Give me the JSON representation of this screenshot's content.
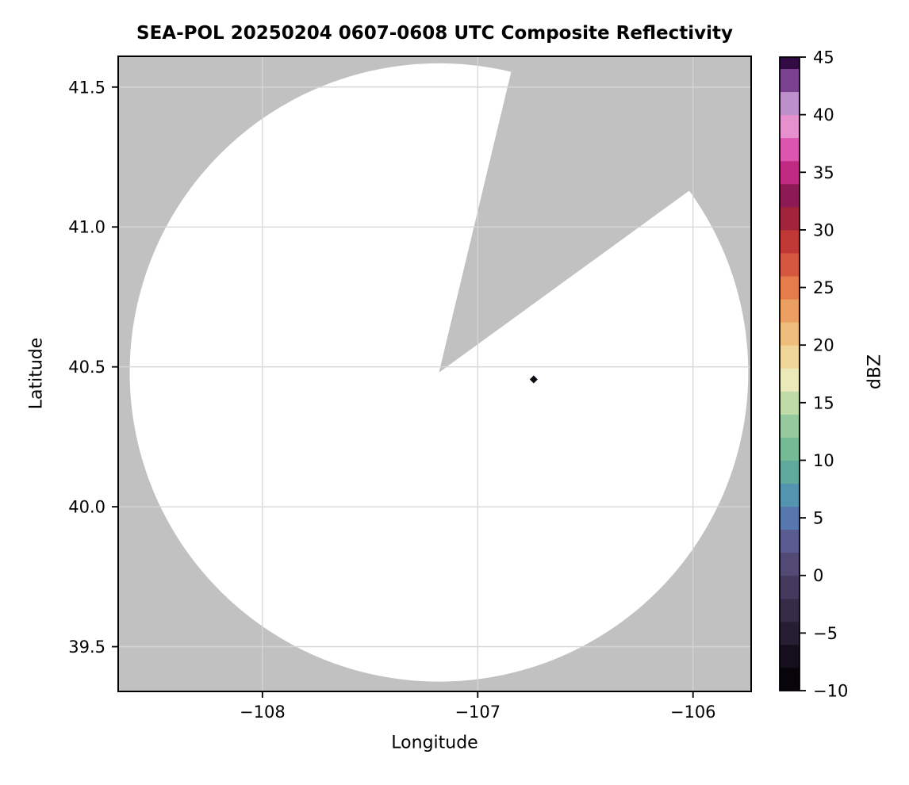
{
  "title": "SEA-POL 20250204 0607-0608 UTC Composite Reflectivity",
  "axes": {
    "xlabel": "Longitude",
    "ylabel": "Latitude",
    "x_ticks": [
      {
        "value": -108,
        "label": "−108"
      },
      {
        "value": -107,
        "label": "−107"
      },
      {
        "value": -106,
        "label": "−106"
      }
    ],
    "y_ticks": [
      {
        "value": 41.5,
        "label": "41.5"
      },
      {
        "value": 41.0,
        "label": "41.0"
      },
      {
        "value": 40.5,
        "label": "40.5"
      },
      {
        "value": 40.0,
        "label": "40.0"
      },
      {
        "value": 39.5,
        "label": "39.5"
      }
    ]
  },
  "colorbar": {
    "label": "dBZ",
    "range": [
      -10,
      45
    ],
    "ticks": [
      {
        "value": 45,
        "label": "45"
      },
      {
        "value": 40,
        "label": "40"
      },
      {
        "value": 35,
        "label": "35"
      },
      {
        "value": 30,
        "label": "30"
      },
      {
        "value": 25,
        "label": "25"
      },
      {
        "value": 20,
        "label": "20"
      },
      {
        "value": 15,
        "label": "15"
      },
      {
        "value": 10,
        "label": "10"
      },
      {
        "value": 5,
        "label": "5"
      },
      {
        "value": 0,
        "label": "0"
      },
      {
        "value": -5,
        "label": "−5"
      },
      {
        "value": -10,
        "label": "−10"
      }
    ],
    "bands": [
      [
        -10,
        -8,
        "#07040a"
      ],
      [
        -8,
        -6,
        "#150f1d"
      ],
      [
        -6,
        -4,
        "#261e32"
      ],
      [
        -4,
        -2,
        "#362c48"
      ],
      [
        -2,
        0,
        "#453a5e"
      ],
      [
        0,
        2,
        "#524a75"
      ],
      [
        2,
        4,
        "#5a5c91"
      ],
      [
        4,
        6,
        "#5777ae"
      ],
      [
        6,
        8,
        "#5394ae"
      ],
      [
        8,
        10,
        "#5fa99d"
      ],
      [
        10,
        12,
        "#73ba95"
      ],
      [
        12,
        14,
        "#96c99d"
      ],
      [
        14,
        16,
        "#c1dba8"
      ],
      [
        16,
        18,
        "#ebe9b9"
      ],
      [
        18,
        20,
        "#f1d699"
      ],
      [
        20,
        22,
        "#efbd7c"
      ],
      [
        22,
        24,
        "#eb9f61"
      ],
      [
        24,
        26,
        "#e47c4c"
      ],
      [
        26,
        28,
        "#d6573f"
      ],
      [
        28,
        30,
        "#bf3836"
      ],
      [
        30,
        32,
        "#a2243c"
      ],
      [
        32,
        34,
        "#8c1a54"
      ],
      [
        34,
        36,
        "#c02a83"
      ],
      [
        36,
        38,
        "#dc55af"
      ],
      [
        38,
        40,
        "#e691cd"
      ],
      [
        40,
        42,
        "#bd90cc"
      ],
      [
        42,
        44,
        "#7a4291"
      ],
      [
        44,
        45,
        "#330b44"
      ]
    ]
  },
  "colors": {
    "no_data": "#c1c1c1",
    "coverage": "#ffffff",
    "grid": "#d6d6d6",
    "frame": "#000000",
    "echo": "#0d0714"
  },
  "chart_data": {
    "type": "heatmap",
    "title": "SEA-POL 20250204 0607-0608 UTC Composite Reflectivity",
    "xlabel": "Longitude",
    "ylabel": "Latitude",
    "xlim": [
      -108.67,
      -105.73
    ],
    "ylim": [
      39.34,
      41.61
    ],
    "grid": true,
    "colorbar_label": "dBZ",
    "colorbar_range": [
      -10,
      45
    ],
    "x_tick_values": [
      -108,
      -107,
      -106
    ],
    "y_tick_values": [
      41.5,
      41.0,
      40.5,
      40.0,
      39.5
    ],
    "radar": {
      "center_lon": -107.18,
      "center_lat": 40.48,
      "coverage_radius_deg_lat": 1.105,
      "missing_sector_azimuth_deg": [
        13.5,
        54
      ]
    },
    "echoes": [
      {
        "lon": -106.74,
        "lat": 40.455,
        "dbz": -10
      }
    ]
  }
}
